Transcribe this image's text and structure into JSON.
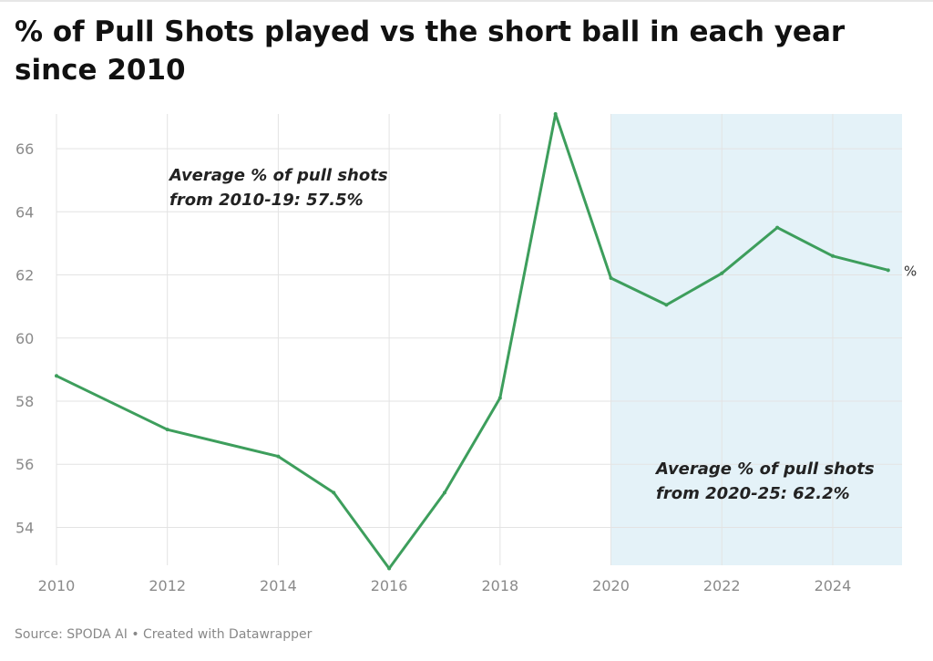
{
  "chart_data": {
    "type": "line",
    "title": "% of Pull Shots played vs the short ball in each year since 2010",
    "x": [
      2010,
      2012,
      2014,
      2015,
      2016,
      2017,
      2018,
      2019,
      2020,
      2021,
      2022,
      2023,
      2024,
      2025
    ],
    "series": [
      {
        "values": [
          58.8,
          57.1,
          56.25,
          55.1,
          52.7,
          55.1,
          58.1,
          67.1,
          61.9,
          61.05,
          62.05,
          63.5,
          62.6,
          62.15
        ]
      }
    ],
    "x_ticks": [
      "2010",
      "2012",
      "2014",
      "2016",
      "2018",
      "2020",
      "2022",
      "2024"
    ],
    "y_ticks": [
      "54",
      "56",
      "58",
      "60",
      "62",
      "64",
      "66"
    ],
    "xlim": [
      2010,
      2025.25
    ],
    "ylim": [
      52.8,
      67.1
    ],
    "grid": true,
    "highlight_range": [
      2020,
      2025.25
    ],
    "end_label": "%",
    "annotations": [
      {
        "lines": [
          "Average % of pull shots",
          "from 2010-19: 57.5%"
        ]
      },
      {
        "lines": [
          "Average % of pull shots",
          "from 2020-25: 62.2%"
        ]
      }
    ],
    "colors": {
      "line": "#3d9e5c",
      "highlight": "#e4f2f8",
      "grid": "#e3e3e3"
    }
  },
  "footer": "Source: SPODA AI • Created with Datawrapper"
}
